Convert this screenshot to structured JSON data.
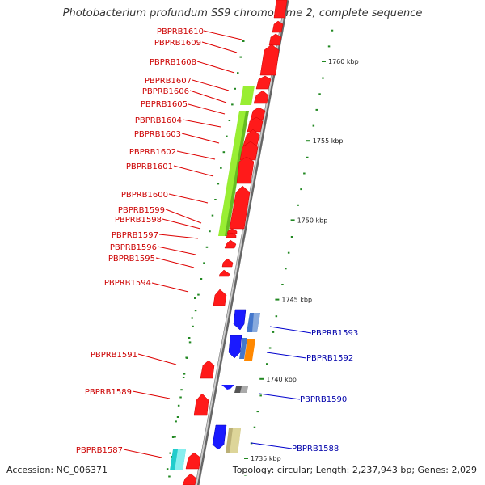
{
  "title": "Photobacterium profundum SS9 chromosome 2, complete sequence",
  "footer": {
    "accession": "Accession: NC_006371",
    "summary": "Topology: circular; Length: 2,237,943 bp; Genes: 2,029"
  },
  "colors": {
    "backbone": "#999999",
    "forward_gene": "#ff1a1a",
    "forward_label": "#cc0000",
    "reverse_gene": "#1a1aff",
    "reverse_label": "#0000aa",
    "orf": "#99ee33",
    "tick": "#228822"
  },
  "scale_labels": [
    {
      "text": "1760 kbp",
      "kb": 1760
    },
    {
      "text": "1755 kbp",
      "kb": 1755
    },
    {
      "text": "1750 kbp",
      "kb": 1750
    },
    {
      "text": "1745 kbp",
      "kb": 1745
    },
    {
      "text": "1740 kbp",
      "kb": 1740
    },
    {
      "text": "1735 kbp",
      "kb": 1735
    }
  ],
  "left_labels": [
    {
      "text": "PBPRB1610"
    },
    {
      "text": "PBPRB1609"
    },
    {
      "text": "PBPRB1608"
    },
    {
      "text": "PBPRB1607"
    },
    {
      "text": "PBPRB1606"
    },
    {
      "text": "PBPRB1605"
    },
    {
      "text": "PBPRB1604"
    },
    {
      "text": "PBPRB1603"
    },
    {
      "text": "PBPRB1602"
    },
    {
      "text": "PBPRB1601"
    },
    {
      "text": "PBPRB1600"
    },
    {
      "text": "PBPRB1599"
    },
    {
      "text": "PBPRB1598"
    },
    {
      "text": "PBPRB1597"
    },
    {
      "text": "PBPRB1596"
    },
    {
      "text": "PBPRB1595"
    },
    {
      "text": "PBPRB1594"
    },
    {
      "text": "PBPRB1591"
    },
    {
      "text": "PBPRB1589"
    },
    {
      "text": "PBPRB1587"
    }
  ],
  "right_labels": [
    {
      "text": "PBPRB1593"
    },
    {
      "text": "PBPRB1592"
    },
    {
      "text": "PBPRB1590"
    },
    {
      "text": "PBPRB1588"
    }
  ]
}
